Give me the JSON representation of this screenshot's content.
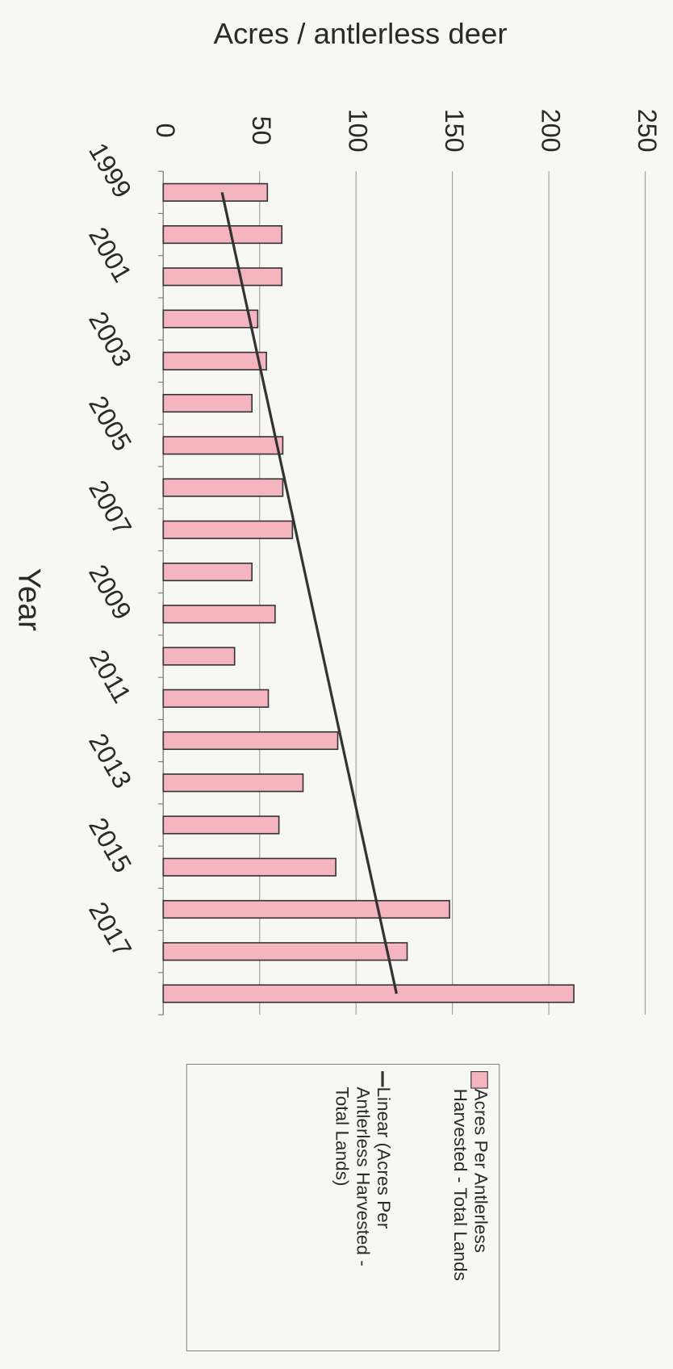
{
  "chart_data": {
    "type": "bar",
    "orientation": "horizontal",
    "rotated": true,
    "title": "Acres / antlerless deer",
    "category_axis_label": "Year",
    "categories": [
      "1999",
      null,
      "2001",
      null,
      "2003",
      null,
      "2005",
      null,
      "2007",
      null,
      "2009",
      null,
      "2011",
      null,
      "2013",
      null,
      "2015",
      null,
      "2017",
      null
    ],
    "series": [
      {
        "name": "Acres Per Antlerless Harvested - Total Lands",
        "color": "#f4b5bf",
        "values": [
          54,
          61.5,
          61.5,
          49,
          53.5,
          46,
          62,
          62,
          67,
          46,
          58,
          37,
          54.5,
          90.5,
          72.5,
          60,
          89.5,
          148.5,
          126.5,
          213
        ]
      }
    ],
    "trendline": {
      "name": "Linear (Acres Per Antlerless Harvested - Total Lands)",
      "color": "#333333",
      "start": 30.5,
      "end": 121
    },
    "xlim": [
      0,
      250
    ],
    "xticks": [
      0,
      50,
      100,
      150,
      200,
      250
    ],
    "grid": true
  }
}
